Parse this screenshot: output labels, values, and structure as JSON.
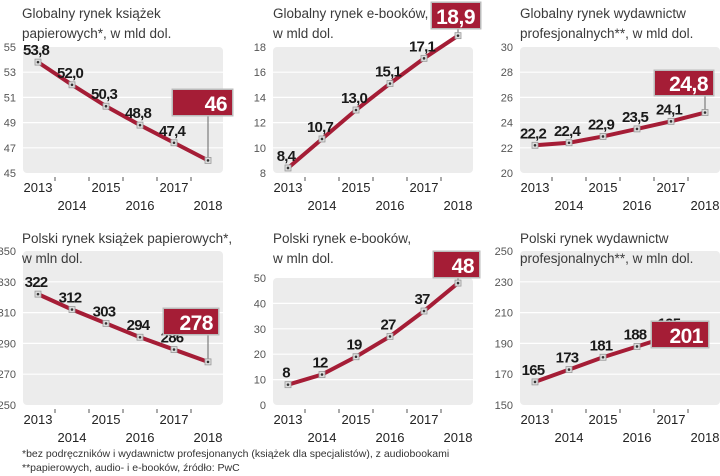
{
  "colors": {
    "line": "#a51d36",
    "plot_bg": "#ececec",
    "grid": "#ffffff",
    "callout": "#a51d36"
  },
  "chart_data": [
    {
      "type": "line",
      "title": [
        "Globalny rynek książek",
        "papierowych*, w mld dol."
      ],
      "x": [
        "2013",
        "2014",
        "2015",
        "2016",
        "2017",
        "2018"
      ],
      "labels": [
        "53,8",
        "52,0",
        "50,3",
        "48,8",
        "47,4",
        "46"
      ],
      "values": [
        53.8,
        52.0,
        50.3,
        48.8,
        47.4,
        46
      ],
      "ylim": [
        45,
        55
      ],
      "yticks": [
        "55",
        "53",
        "51",
        "49",
        "47",
        "45"
      ],
      "grid": true
    },
    {
      "type": "line",
      "title": [
        "Globalny rynek e-booków,",
        "w mld dol."
      ],
      "x": [
        "2013",
        "2014",
        "2015",
        "2016",
        "2017",
        "2018"
      ],
      "labels": [
        "8,4",
        "10,7",
        "13,0",
        "15,1",
        "17,1",
        "18,9"
      ],
      "values": [
        8.4,
        10.7,
        13.0,
        15.1,
        17.1,
        18.9
      ],
      "ylim": [
        8,
        18
      ],
      "yticks": [
        "18",
        "16",
        "14",
        "12",
        "10",
        "8"
      ],
      "grid": true
    },
    {
      "type": "line",
      "title": [
        "Globalny rynek wydawnictw",
        "profesjonalnych**, w mld dol."
      ],
      "x": [
        "2013",
        "2014",
        "2015",
        "2016",
        "2017",
        "2018"
      ],
      "labels": [
        "22,2",
        "22,4",
        "22,9",
        "23,5",
        "24,1",
        "24,8"
      ],
      "values": [
        22.2,
        22.4,
        22.9,
        23.5,
        24.1,
        24.8
      ],
      "ylim": [
        20,
        30
      ],
      "yticks": [
        "30",
        "28",
        "26",
        "24",
        "22",
        "20"
      ],
      "grid": true
    },
    {
      "type": "line",
      "title": [
        "Polski rynek książek papierowych*,",
        "w mln dol."
      ],
      "x": [
        "2013",
        "2014",
        "2015",
        "2016",
        "2017",
        "2018"
      ],
      "labels": [
        "322",
        "312",
        "303",
        "294",
        "286",
        "278"
      ],
      "values": [
        322,
        312,
        303,
        294,
        286,
        278
      ],
      "ylim": [
        250,
        350
      ],
      "yticks": [
        "350",
        "330",
        "310",
        "290",
        "270",
        "250"
      ],
      "grid": true
    },
    {
      "type": "line",
      "title": [
        "Polski rynek e-booków,",
        "w mln dol."
      ],
      "x": [
        "2013",
        "2014",
        "2015",
        "2016",
        "2017",
        "2018"
      ],
      "labels": [
        "8",
        "12",
        "19",
        "27",
        "37",
        "48"
      ],
      "values": [
        8,
        12,
        19,
        27,
        37,
        48
      ],
      "ylim": [
        0,
        50
      ],
      "yticks": [
        "50",
        "40",
        "30",
        "20",
        "10",
        "0"
      ],
      "grid": true
    },
    {
      "type": "line",
      "title": [
        "Polski rynek wydawnictw",
        "profesjonalnych**, w mln dol."
      ],
      "x": [
        "2013",
        "2014",
        "2015",
        "2016",
        "2017",
        "2018"
      ],
      "labels": [
        "165",
        "173",
        "181",
        "188",
        "195",
        "201"
      ],
      "values": [
        165,
        173,
        181,
        188,
        195,
        201
      ],
      "ylim": [
        150,
        250
      ],
      "yticks": [
        "250",
        "230",
        "210",
        "190",
        "170",
        "150"
      ],
      "grid": true
    }
  ],
  "footnotes": [
    "*bez podręczników i wydawnictw profesjonanych (książek dla specjalistów), z audiobookami",
    "**papierowych, audio- i e-booków, źródło: PwC"
  ]
}
